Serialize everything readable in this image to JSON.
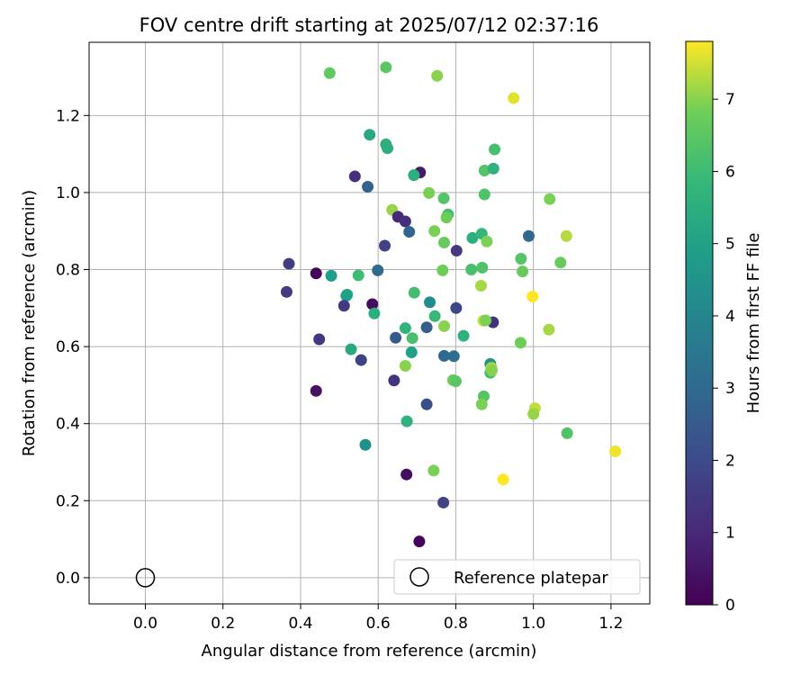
{
  "chart_data": {
    "type": "scatter",
    "title": "FOV centre drift starting at 2025/07/12 02:37:16",
    "xlabel": "Angular distance from reference (arcmin)",
    "ylabel": "Rotation from reference (arcmin)",
    "xlim": [
      -0.145,
      1.3
    ],
    "ylim": [
      -0.068,
      1.39
    ],
    "xticks": [
      "0.0",
      "0.2",
      "0.4",
      "0.6",
      "0.8",
      "1.0",
      "1.2"
    ],
    "yticks": [
      "0.0",
      "0.2",
      "0.4",
      "0.6",
      "0.8",
      "1.0",
      "1.2"
    ],
    "grid": true,
    "colormap": "viridis",
    "colorbar": {
      "label": "Hours from first FF file",
      "range": [
        0,
        7.8
      ],
      "ticks": [
        "0",
        "1",
        "2",
        "3",
        "4",
        "5",
        "6",
        "7"
      ]
    },
    "legend": {
      "label": "Reference platepar",
      "placement": "lower-right"
    },
    "reference_point": {
      "x": 0.0,
      "y": 0.0
    },
    "points": [
      {
        "x": 0.475,
        "y": 1.31,
        "h": 6.6
      },
      {
        "x": 0.62,
        "y": 1.325,
        "h": 6.5
      },
      {
        "x": 0.752,
        "y": 1.303,
        "h": 7.0
      },
      {
        "x": 0.949,
        "y": 1.245,
        "h": 7.6
      },
      {
        "x": 0.578,
        "y": 1.15,
        "h": 5.3
      },
      {
        "x": 0.62,
        "y": 1.125,
        "h": 5.6
      },
      {
        "x": 0.624,
        "y": 1.115,
        "h": 5.5
      },
      {
        "x": 0.9,
        "y": 1.112,
        "h": 6.2
      },
      {
        "x": 0.708,
        "y": 1.052,
        "h": 0.6
      },
      {
        "x": 0.692,
        "y": 1.045,
        "h": 5.5
      },
      {
        "x": 0.874,
        "y": 1.057,
        "h": 6.4
      },
      {
        "x": 0.897,
        "y": 1.062,
        "h": 5.6
      },
      {
        "x": 0.54,
        "y": 1.042,
        "h": 1.2
      },
      {
        "x": 0.573,
        "y": 1.015,
        "h": 2.7
      },
      {
        "x": 0.731,
        "y": 0.999,
        "h": 6.9
      },
      {
        "x": 0.769,
        "y": 0.985,
        "h": 6.4
      },
      {
        "x": 0.874,
        "y": 0.995,
        "h": 6.3
      },
      {
        "x": 1.042,
        "y": 0.983,
        "h": 6.9
      },
      {
        "x": 0.636,
        "y": 0.955,
        "h": 7.1
      },
      {
        "x": 0.651,
        "y": 0.937,
        "h": 1.0
      },
      {
        "x": 0.67,
        "y": 0.925,
        "h": 1.2
      },
      {
        "x": 0.78,
        "y": 0.943,
        "h": 6.1
      },
      {
        "x": 0.776,
        "y": 0.935,
        "h": 6.8
      },
      {
        "x": 0.68,
        "y": 0.898,
        "h": 2.8
      },
      {
        "x": 0.745,
        "y": 0.9,
        "h": 6.9
      },
      {
        "x": 0.843,
        "y": 0.882,
        "h": 5.5
      },
      {
        "x": 0.867,
        "y": 0.893,
        "h": 5.8
      },
      {
        "x": 0.988,
        "y": 0.887,
        "h": 3.0
      },
      {
        "x": 1.085,
        "y": 0.887,
        "h": 7.3
      },
      {
        "x": 0.617,
        "y": 0.862,
        "h": 1.7
      },
      {
        "x": 0.77,
        "y": 0.87,
        "h": 6.7
      },
      {
        "x": 0.802,
        "y": 0.849,
        "h": 1.5
      },
      {
        "x": 0.88,
        "y": 0.873,
        "h": 6.9
      },
      {
        "x": 0.37,
        "y": 0.815,
        "h": 1.6
      },
      {
        "x": 0.968,
        "y": 0.828,
        "h": 6.4
      },
      {
        "x": 1.07,
        "y": 0.818,
        "h": 6.7
      },
      {
        "x": 0.44,
        "y": 0.79,
        "h": 0.1
      },
      {
        "x": 0.479,
        "y": 0.784,
        "h": 4.8
      },
      {
        "x": 0.549,
        "y": 0.785,
        "h": 6.0
      },
      {
        "x": 0.599,
        "y": 0.798,
        "h": 3.0
      },
      {
        "x": 0.766,
        "y": 0.798,
        "h": 6.8
      },
      {
        "x": 0.84,
        "y": 0.8,
        "h": 6.2
      },
      {
        "x": 0.868,
        "y": 0.805,
        "h": 6.3
      },
      {
        "x": 0.972,
        "y": 0.795,
        "h": 6.7
      },
      {
        "x": 0.364,
        "y": 0.742,
        "h": 1.5
      },
      {
        "x": 0.865,
        "y": 0.758,
        "h": 7.2
      },
      {
        "x": 0.52,
        "y": 0.735,
        "h": 5.5
      },
      {
        "x": 0.518,
        "y": 0.732,
        "h": 4.9
      },
      {
        "x": 0.693,
        "y": 0.74,
        "h": 6.1
      },
      {
        "x": 0.998,
        "y": 0.73,
        "h": 7.8
      },
      {
        "x": 0.733,
        "y": 0.715,
        "h": 4.2
      },
      {
        "x": 0.585,
        "y": 0.71,
        "h": 0.3
      },
      {
        "x": 0.512,
        "y": 0.706,
        "h": 1.5
      },
      {
        "x": 0.801,
        "y": 0.7,
        "h": 1.9
      },
      {
        "x": 0.59,
        "y": 0.686,
        "h": 5.5
      },
      {
        "x": 0.746,
        "y": 0.679,
        "h": 5.9
      },
      {
        "x": 0.871,
        "y": 0.667,
        "h": 7.4
      },
      {
        "x": 0.896,
        "y": 0.663,
        "h": 1.3
      },
      {
        "x": 0.877,
        "y": 0.668,
        "h": 6.9
      },
      {
        "x": 0.67,
        "y": 0.648,
        "h": 5.7
      },
      {
        "x": 0.725,
        "y": 0.65,
        "h": 2.6
      },
      {
        "x": 0.77,
        "y": 0.653,
        "h": 7.0
      },
      {
        "x": 1.04,
        "y": 0.644,
        "h": 7.2
      },
      {
        "x": 0.82,
        "y": 0.628,
        "h": 5.6
      },
      {
        "x": 0.448,
        "y": 0.619,
        "h": 1.4
      },
      {
        "x": 0.645,
        "y": 0.623,
        "h": 2.5
      },
      {
        "x": 0.688,
        "y": 0.622,
        "h": 6.2
      },
      {
        "x": 0.967,
        "y": 0.61,
        "h": 6.8
      },
      {
        "x": 0.53,
        "y": 0.593,
        "h": 5.3
      },
      {
        "x": 0.686,
        "y": 0.585,
        "h": 4.9
      },
      {
        "x": 0.77,
        "y": 0.576,
        "h": 3.0
      },
      {
        "x": 0.795,
        "y": 0.575,
        "h": 3.1
      },
      {
        "x": 0.556,
        "y": 0.565,
        "h": 1.7
      },
      {
        "x": 0.889,
        "y": 0.555,
        "h": 4.5
      },
      {
        "x": 0.892,
        "y": 0.545,
        "h": 7.2
      },
      {
        "x": 0.67,
        "y": 0.55,
        "h": 7.0
      },
      {
        "x": 0.889,
        "y": 0.532,
        "h": 6.1
      },
      {
        "x": 0.893,
        "y": 0.538,
        "h": 7.0
      },
      {
        "x": 0.641,
        "y": 0.512,
        "h": 1.3
      },
      {
        "x": 0.793,
        "y": 0.513,
        "h": 6.8
      },
      {
        "x": 0.8,
        "y": 0.51,
        "h": 6.5
      },
      {
        "x": 0.872,
        "y": 0.471,
        "h": 6.4
      },
      {
        "x": 0.867,
        "y": 0.45,
        "h": 6.9
      },
      {
        "x": 0.725,
        "y": 0.45,
        "h": 2.1
      },
      {
        "x": 0.44,
        "y": 0.485,
        "h": 0.4
      },
      {
        "x": 1.004,
        "y": 0.44,
        "h": 7.4
      },
      {
        "x": 1.0,
        "y": 0.425,
        "h": 7.1
      },
      {
        "x": 0.674,
        "y": 0.406,
        "h": 5.6
      },
      {
        "x": 1.087,
        "y": 0.375,
        "h": 6.3
      },
      {
        "x": 0.567,
        "y": 0.345,
        "h": 4.4
      },
      {
        "x": 1.211,
        "y": 0.328,
        "h": 7.7
      },
      {
        "x": 0.743,
        "y": 0.278,
        "h": 6.9
      },
      {
        "x": 0.673,
        "y": 0.268,
        "h": 0.3
      },
      {
        "x": 0.922,
        "y": 0.255,
        "h": 7.8
      },
      {
        "x": 0.768,
        "y": 0.195,
        "h": 1.8
      },
      {
        "x": 0.706,
        "y": 0.094,
        "h": 0.1
      }
    ]
  }
}
